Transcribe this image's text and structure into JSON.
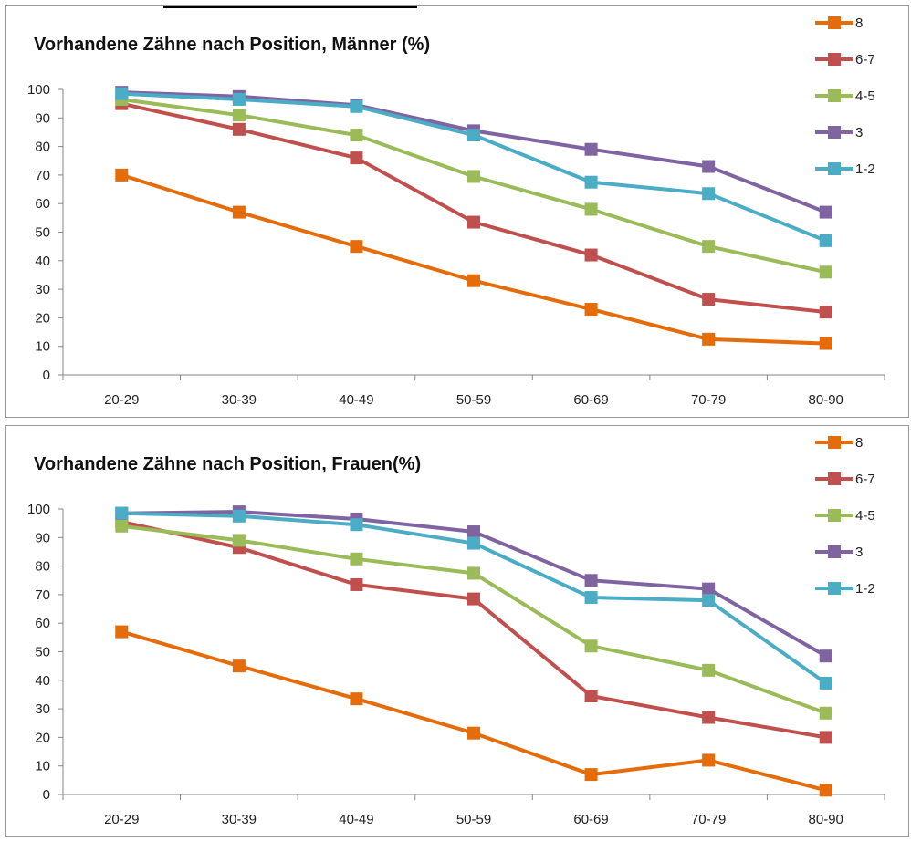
{
  "chart_data": [
    {
      "type": "line",
      "title": "Vorhandene Zähne nach Position, Männer (%)",
      "categories": [
        "20-29",
        "30-39",
        "40-49",
        "50-59",
        "60-69",
        "70-79",
        "80-90"
      ],
      "y_ticks": [
        "0",
        "10",
        "20",
        "30",
        "40",
        "50",
        "60",
        "70",
        "80",
        "90",
        "100"
      ],
      "ylim": [
        0,
        100
      ],
      "legend_position": "top-right",
      "series": [
        {
          "name": "8",
          "color": "#E46C0A",
          "values": [
            70,
            57,
            45,
            33,
            23,
            12.5,
            11
          ]
        },
        {
          "name": "6-7",
          "color": "#C0504D",
          "values": [
            95,
            86,
            76,
            53.5,
            42,
            26.5,
            22
          ]
        },
        {
          "name": "4-5",
          "color": "#9BBB59",
          "values": [
            96.5,
            91,
            84,
            69.5,
            58,
            45,
            36
          ]
        },
        {
          "name": "3",
          "color": "#8064A2",
          "values": [
            99,
            97.5,
            94.5,
            85.5,
            79,
            73,
            57
          ]
        },
        {
          "name": "1-2",
          "color": "#4BACC6",
          "values": [
            98.5,
            96.5,
            94,
            84,
            67.5,
            63.5,
            47
          ]
        }
      ]
    },
    {
      "type": "line",
      "title": "Vorhandene Zähne nach Position, Frauen(%)",
      "categories": [
        "20-29",
        "30-39",
        "40-49",
        "50-59",
        "60-69",
        "70-79",
        "80-90"
      ],
      "y_ticks": [
        "0",
        "10",
        "20",
        "30",
        "40",
        "50",
        "60",
        "70",
        "80",
        "90",
        "100"
      ],
      "ylim": [
        0,
        100
      ],
      "legend_position": "top-right",
      "series": [
        {
          "name": "8",
          "color": "#E46C0A",
          "values": [
            57,
            45,
            33.5,
            21.5,
            7,
            12,
            1.5
          ]
        },
        {
          "name": "6-7",
          "color": "#C0504D",
          "values": [
            95.5,
            86.5,
            73.5,
            68.5,
            34.5,
            27,
            20
          ]
        },
        {
          "name": "4-5",
          "color": "#9BBB59",
          "values": [
            94,
            89,
            82.5,
            77.5,
            52,
            43.5,
            28.5
          ]
        },
        {
          "name": "3",
          "color": "#8064A2",
          "values": [
            98.5,
            99,
            96.5,
            92,
            75,
            72,
            48.5
          ]
        },
        {
          "name": "1-2",
          "color": "#4BACC6",
          "values": [
            98.5,
            97.5,
            94.5,
            88,
            69,
            68,
            39
          ]
        }
      ]
    }
  ]
}
